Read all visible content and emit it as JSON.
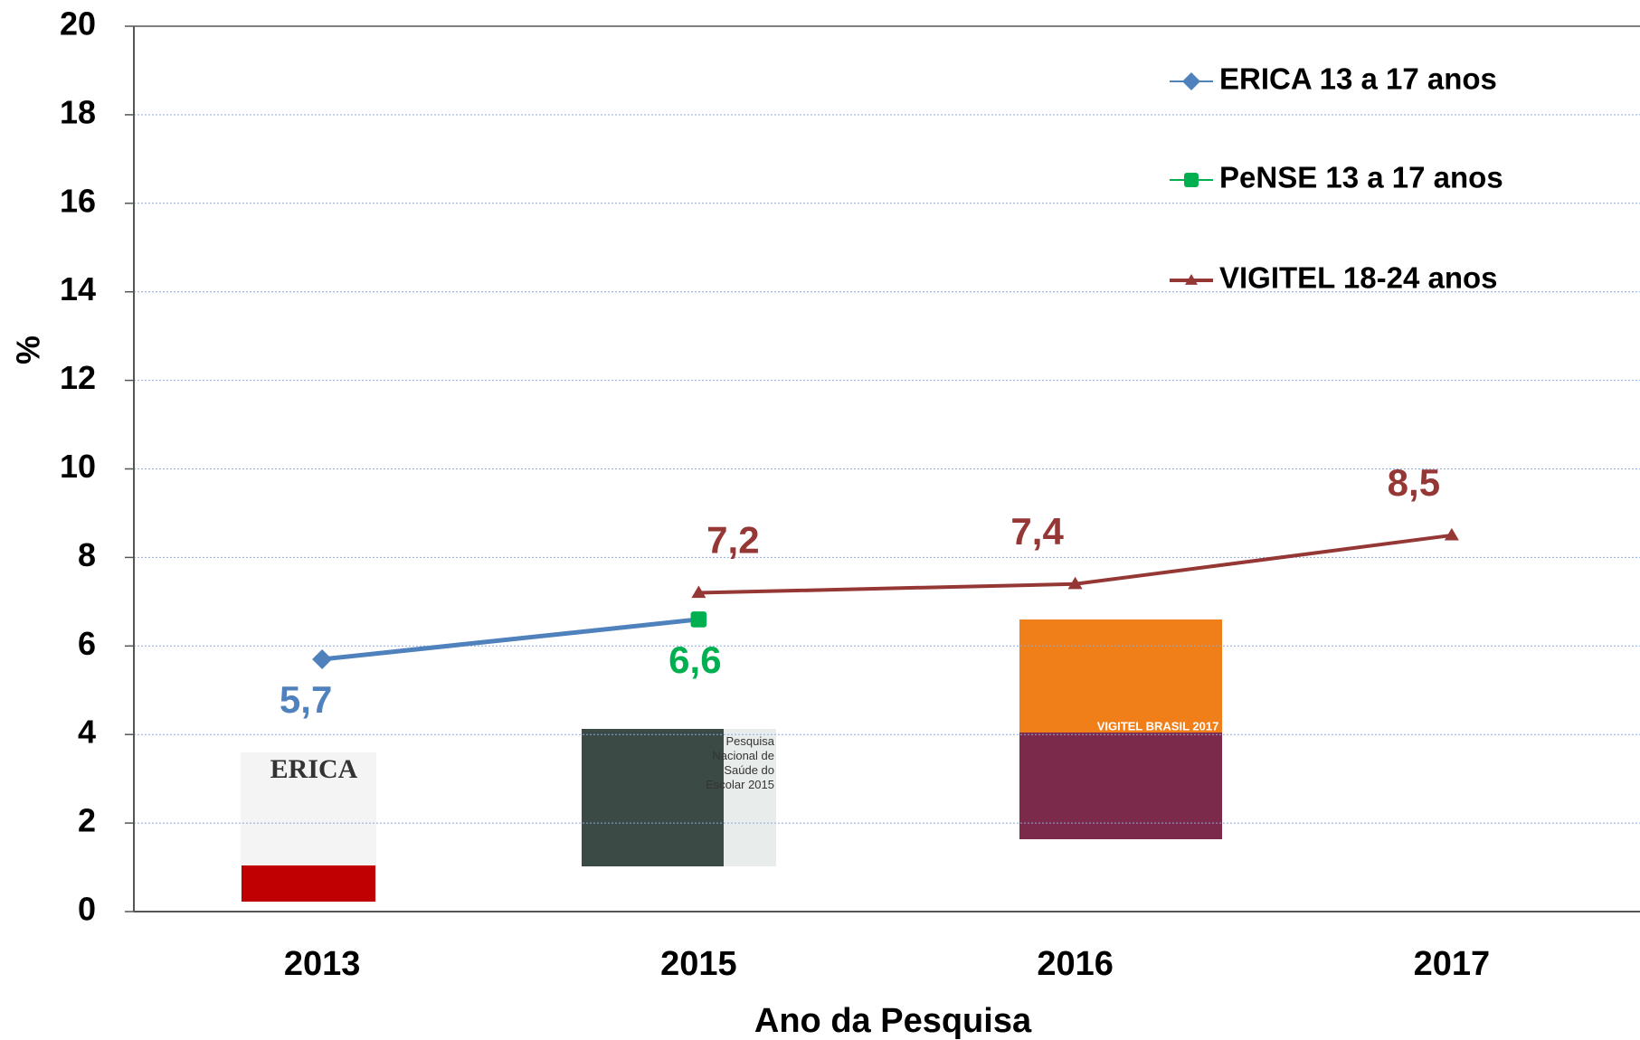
{
  "chart_data": {
    "type": "line",
    "x_label": "Ano da Pesquisa",
    "y_label": "%",
    "categories": [
      "2013",
      "2015",
      "2016",
      "2017"
    ],
    "series": [
      {
        "name": "ERICA 13 a 17 anos",
        "color": "#4f81bd",
        "marker": "diamond",
        "values": [
          5.7,
          null,
          null,
          null
        ],
        "value_labels": [
          "5,7",
          null,
          null,
          null
        ]
      },
      {
        "name": "PeNSE 13 a 17 anos",
        "color": "#00b050",
        "marker": "square",
        "values": [
          null,
          6.6,
          null,
          null
        ],
        "value_labels": [
          null,
          "6,6",
          null,
          null
        ]
      },
      {
        "name": "VIGITEL 18-24 anos",
        "color": "#953735",
        "marker": "triangle",
        "values": [
          null,
          7.2,
          7.4,
          8.5
        ],
        "value_labels": [
          null,
          "7,2",
          "7,4",
          "8,5"
        ]
      }
    ],
    "ylim": [
      0,
      20
    ],
    "yticks": [
      0,
      2,
      4,
      6,
      8,
      10,
      12,
      14,
      16,
      18,
      20
    ],
    "grid": true,
    "legend": "top-right",
    "annotations": [
      "ERICA",
      "Pesquisa Nacional de Saúde do Escolar 2015",
      "VIGITEL BRASIL 2017"
    ]
  }
}
